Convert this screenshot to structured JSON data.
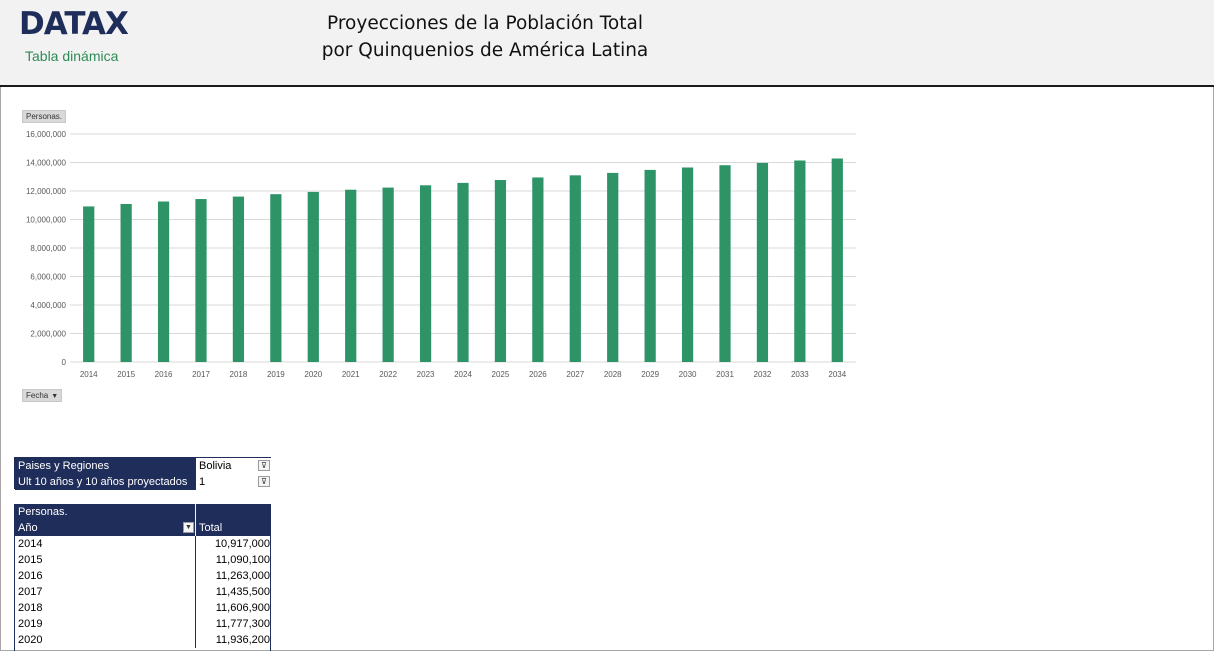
{
  "header": {
    "logo": "DATAX",
    "subtitle": "Tabla dinámica",
    "title_line1": "Proyecciones de la Población Total",
    "title_line2": "por Quinquenios de América Latina"
  },
  "chart_buttons": {
    "value_field": "Personas.",
    "axis_field": "Fecha"
  },
  "chart_data": {
    "type": "bar",
    "ylim": [
      0,
      16000000
    ],
    "yticks": [
      0,
      2000000,
      4000000,
      6000000,
      8000000,
      10000000,
      12000000,
      14000000,
      16000000
    ],
    "ytick_labels": [
      "0",
      "2,000,000",
      "4,000,000",
      "6,000,000",
      "8,000,000",
      "10,000,000",
      "12,000,000",
      "14,000,000",
      "16,000,000"
    ],
    "grid": true,
    "bar_color": "#2e9467",
    "categories": [
      "2014",
      "2015",
      "2016",
      "2017",
      "2018",
      "2019",
      "2020",
      "2021",
      "2022",
      "2023",
      "2024",
      "2025",
      "2026",
      "2027",
      "2028",
      "2029",
      "2030",
      "2031",
      "2032",
      "2033",
      "2034"
    ],
    "values": [
      10917000,
      11090100,
      11263000,
      11435500,
      11606900,
      11777300,
      11936200,
      12090000,
      12240000,
      12400000,
      12570000,
      12770000,
      12950000,
      13100000,
      13270000,
      13480000,
      13650000,
      13810000,
      13970000,
      14140000,
      14280000
    ]
  },
  "filters": [
    {
      "label": "Paises y Regiones",
      "value": "Bolivia"
    },
    {
      "label": "Ult 10 años y 10 años proyectados",
      "value": "1"
    }
  ],
  "pivot": {
    "value_label": "Personas.",
    "row_header": "Año",
    "col_header": "Total",
    "rows": [
      {
        "year": "2014",
        "total": "10,917,000"
      },
      {
        "year": "2015",
        "total": "11,090,100"
      },
      {
        "year": "2016",
        "total": "11,263,000"
      },
      {
        "year": "2017",
        "total": "11,435,500"
      },
      {
        "year": "2018",
        "total": "11,606,900"
      },
      {
        "year": "2019",
        "total": "11,777,300"
      },
      {
        "year": "2020",
        "total": "11,936,200"
      }
    ]
  },
  "icons": {
    "filter": "filter-icon",
    "dropdown": "chevron-down-icon"
  }
}
